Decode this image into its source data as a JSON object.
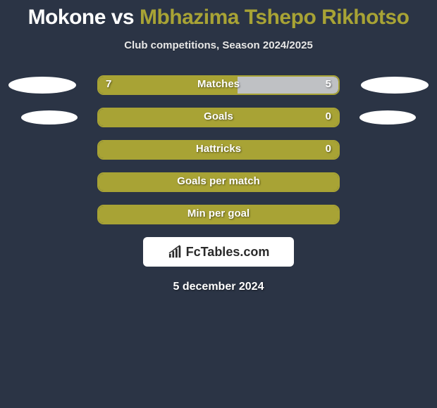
{
  "title": {
    "player1": "Mokone",
    "vs": "vs",
    "player2": "Mbhazima Tshepo Rikhotso"
  },
  "subtitle": "Club competitions, Season 2024/2025",
  "colors": {
    "player1": "#bfc1c4",
    "player2": "#a8a335",
    "bar_border": "#a8a335",
    "bar_bg_empty": "#2b3445",
    "background": "#2b3445",
    "text": "#ffffff"
  },
  "stats": [
    {
      "label": "Matches",
      "left_value": "7",
      "right_value": "5",
      "left_pct": 58,
      "right_pct": 42,
      "show_left_value": true,
      "show_right_value": true,
      "left_ellipse": "big",
      "right_ellipse": "big"
    },
    {
      "label": "Goals",
      "left_value": "",
      "right_value": "0",
      "left_pct": 100,
      "right_pct": 0,
      "show_left_value": false,
      "show_right_value": true,
      "left_ellipse": "small",
      "right_ellipse": "small"
    },
    {
      "label": "Hattricks",
      "left_value": "",
      "right_value": "0",
      "left_pct": 100,
      "right_pct": 0,
      "show_left_value": false,
      "show_right_value": true,
      "left_ellipse": "none",
      "right_ellipse": "none"
    },
    {
      "label": "Goals per match",
      "left_value": "",
      "right_value": "",
      "left_pct": 100,
      "right_pct": 0,
      "show_left_value": false,
      "show_right_value": false,
      "left_ellipse": "none",
      "right_ellipse": "none"
    },
    {
      "label": "Min per goal",
      "left_value": "",
      "right_value": "",
      "left_pct": 100,
      "right_pct": 0,
      "show_left_value": false,
      "show_right_value": false,
      "left_ellipse": "none",
      "right_ellipse": "none"
    }
  ],
  "logo": {
    "text": "FcTables.com"
  },
  "date": "5 december 2024"
}
